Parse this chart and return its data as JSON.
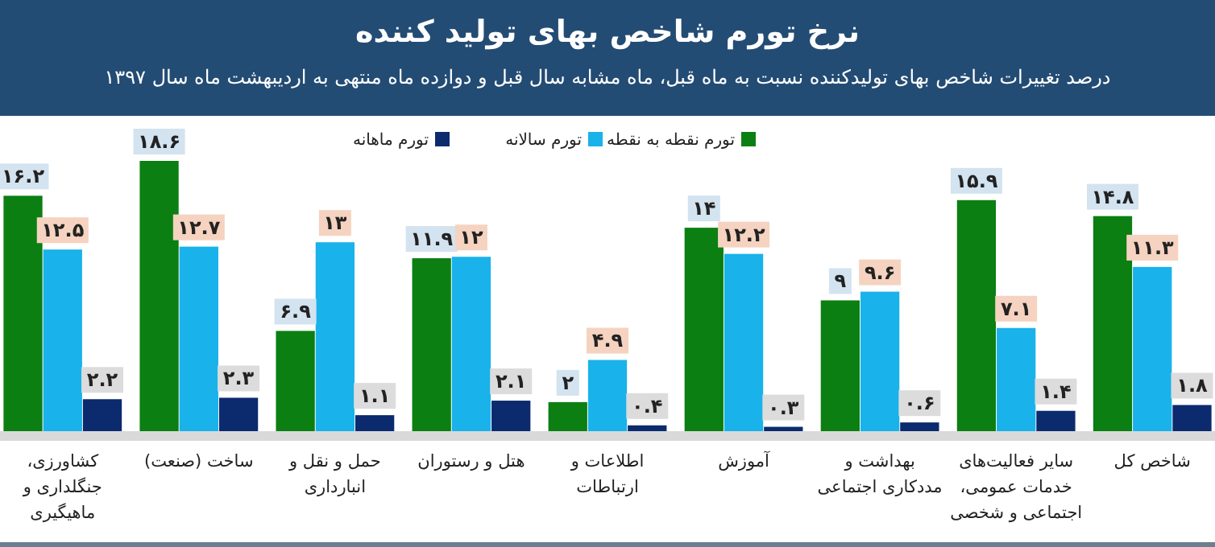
{
  "chart_data": {
    "type": "bar",
    "title": "نرخ تورم شاخص بهای تولید کننده",
    "subtitle": "درصد تغییرات شاخص بهای تولیدکننده نسبت به ماه قبل، ماه مشابه سال قبل و دوازده ماه منتهی به اردیبهشت ماه سال ۱۳۹۷",
    "categories": [
      "کشاورزی، جنگلداری و ماهیگیری",
      "ساخت (صنعت)",
      "حمل و نقل و انبارداری",
      "هتل و رستوران",
      "اطلاعات و ارتباطات",
      "آموزش",
      "بهداشت و مددکاری اجتماعی",
      "سایر فعالیت‌های خدمات عمومی، اجتماعی و شخصی",
      "شاخص کل"
    ],
    "series": [
      {
        "name": "تورم نقطه به نقطه",
        "color": "#0b7f12",
        "values": [
          16.2,
          18.6,
          6.9,
          11.9,
          2,
          14,
          9,
          15.9,
          14.8
        ],
        "value_labels": [
          "۱۶.۲",
          "۱۸.۶",
          "۶.۹",
          "۱۱.۹",
          "۲",
          "۱۴",
          "۹",
          "۱۵.۹",
          "۱۴.۸"
        ]
      },
      {
        "name": "تورم سالانه",
        "color": "#19b2ea",
        "values": [
          12.5,
          12.7,
          13,
          12,
          4.9,
          12.2,
          9.6,
          7.1,
          11.3
        ],
        "value_labels": [
          "۱۲.۵",
          "۱۲.۷",
          "۱۳",
          "۱۲",
          "۴.۹",
          "۱۲.۲",
          "۹.۶",
          "۷.۱",
          "۱۱.۳"
        ]
      },
      {
        "name": "تورم ماهانه",
        "color": "#0c2a6e",
        "values": [
          2.2,
          2.3,
          1.1,
          2.1,
          0.4,
          0.3,
          0.6,
          1.4,
          1.8
        ],
        "value_labels": [
          "۲.۲",
          "۲.۳",
          "۱.۱",
          "۲.۱",
          "۰.۴",
          "۰.۳",
          "۰.۶",
          "۱.۴",
          "۱.۸"
        ]
      }
    ],
    "legend": "top",
    "grid": false
  }
}
